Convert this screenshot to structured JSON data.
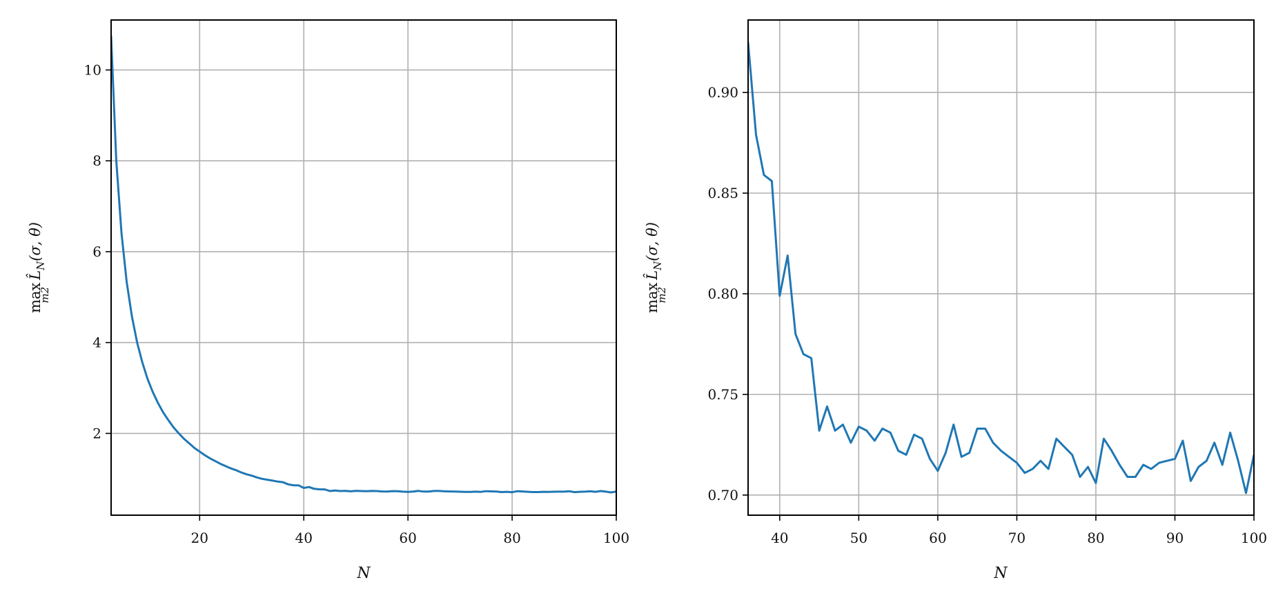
{
  "chart_data": [
    {
      "type": "line",
      "xlabel": "N",
      "ylabel": {
        "op": "max",
        "op_sub": "m2",
        "func": "L̂",
        "func_sub": "N",
        "args": "(σ, θ)"
      },
      "xlim": [
        3,
        100
      ],
      "ylim": [
        0.2,
        11.1
      ],
      "grid": true,
      "xticks": [
        20,
        40,
        60,
        80,
        100
      ],
      "yticks": [
        2,
        4,
        6,
        8,
        10
      ],
      "color": "#1f77b4",
      "x": [
        3,
        4,
        5,
        6,
        7,
        8,
        9,
        10,
        11,
        12,
        13,
        14,
        15,
        16,
        17,
        18,
        19,
        20,
        21,
        22,
        23,
        24,
        25,
        26,
        27,
        28,
        29,
        30,
        31,
        32,
        33,
        34,
        35,
        36,
        37,
        38,
        39,
        40,
        41,
        42,
        43,
        44,
        45,
        46,
        47,
        48,
        49,
        50,
        51,
        52,
        53,
        54,
        55,
        56,
        57,
        58,
        59,
        60,
        61,
        62,
        63,
        64,
        65,
        66,
        67,
        68,
        69,
        70,
        71,
        72,
        73,
        74,
        75,
        76,
        77,
        78,
        79,
        80,
        81,
        82,
        83,
        84,
        85,
        86,
        87,
        88,
        89,
        90,
        91,
        92,
        93,
        94,
        95,
        96,
        97,
        98,
        99,
        100
      ],
      "y": [
        10.75,
        8.0,
        6.4,
        5.33,
        4.57,
        4.0,
        3.56,
        3.2,
        2.91,
        2.67,
        2.46,
        2.29,
        2.13,
        2.0,
        1.88,
        1.78,
        1.68,
        1.6,
        1.52,
        1.45,
        1.39,
        1.33,
        1.28,
        1.23,
        1.19,
        1.14,
        1.1,
        1.07,
        1.03,
        1.0,
        0.98,
        0.96,
        0.94,
        0.925,
        0.879,
        0.859,
        0.856,
        0.799,
        0.819,
        0.78,
        0.77,
        0.768,
        0.732,
        0.744,
        0.732,
        0.735,
        0.726,
        0.734,
        0.732,
        0.727,
        0.733,
        0.731,
        0.722,
        0.72,
        0.73,
        0.728,
        0.718,
        0.712,
        0.721,
        0.735,
        0.719,
        0.721,
        0.733,
        0.733,
        0.726,
        0.722,
        0.719,
        0.716,
        0.711,
        0.713,
        0.717,
        0.713,
        0.728,
        0.724,
        0.72,
        0.709,
        0.714,
        0.706,
        0.728,
        0.722,
        0.715,
        0.709,
        0.709,
        0.715,
        0.713,
        0.716,
        0.717,
        0.718,
        0.727,
        0.707,
        0.714,
        0.717,
        0.726,
        0.715,
        0.731,
        0.717,
        0.701,
        0.72
      ]
    },
    {
      "type": "line",
      "xlabel": "N",
      "ylabel": {
        "op": "max",
        "op_sub": "m2",
        "func": "L̂",
        "func_sub": "N",
        "args": "(σ, θ)"
      },
      "xlim": [
        36,
        100
      ],
      "ylim": [
        0.69,
        0.936
      ],
      "grid": true,
      "xticks": [
        40,
        50,
        60,
        70,
        80,
        90,
        100
      ],
      "yticks": [
        "0.70",
        "0.75",
        "0.80",
        "0.85",
        "0.90"
      ],
      "color": "#1f77b4",
      "x": [
        36,
        37,
        38,
        39,
        40,
        41,
        42,
        43,
        44,
        45,
        46,
        47,
        48,
        49,
        50,
        51,
        52,
        53,
        54,
        55,
        56,
        57,
        58,
        59,
        60,
        61,
        62,
        63,
        64,
        65,
        66,
        67,
        68,
        69,
        70,
        71,
        72,
        73,
        74,
        75,
        76,
        77,
        78,
        79,
        80,
        81,
        82,
        83,
        84,
        85,
        86,
        87,
        88,
        89,
        90,
        91,
        92,
        93,
        94,
        95,
        96,
        97,
        98,
        99,
        100
      ],
      "y": [
        0.925,
        0.879,
        0.859,
        0.856,
        0.799,
        0.819,
        0.78,
        0.77,
        0.768,
        0.732,
        0.744,
        0.732,
        0.735,
        0.726,
        0.734,
        0.732,
        0.727,
        0.733,
        0.731,
        0.722,
        0.72,
        0.73,
        0.728,
        0.718,
        0.712,
        0.721,
        0.735,
        0.719,
        0.721,
        0.733,
        0.733,
        0.726,
        0.722,
        0.719,
        0.716,
        0.711,
        0.713,
        0.717,
        0.713,
        0.728,
        0.724,
        0.72,
        0.709,
        0.714,
        0.706,
        0.728,
        0.722,
        0.715,
        0.709,
        0.709,
        0.715,
        0.713,
        0.716,
        0.717,
        0.718,
        0.727,
        0.707,
        0.714,
        0.717,
        0.726,
        0.715,
        0.731,
        0.717,
        0.701,
        0.72
      ]
    }
  ]
}
